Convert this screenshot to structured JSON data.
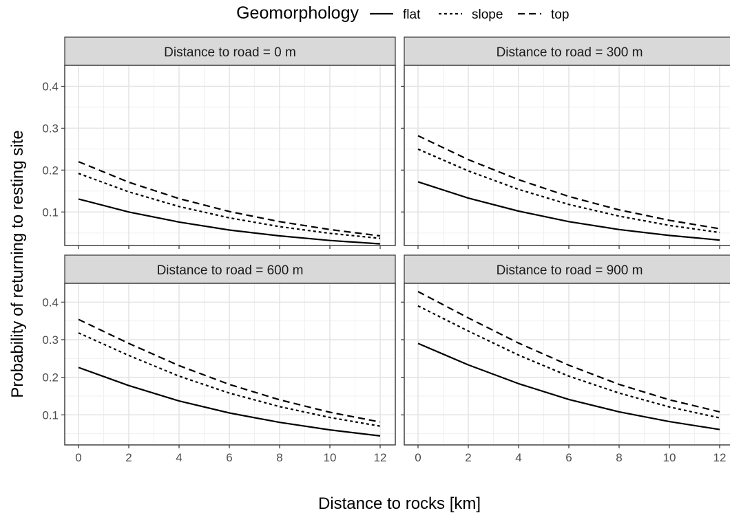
{
  "legend": {
    "title": "Geomorphology",
    "items": [
      {
        "label": "flat",
        "dash": "solid"
      },
      {
        "label": "slope",
        "dash": "dotted"
      },
      {
        "label": "top",
        "dash": "dashed"
      }
    ]
  },
  "axes": {
    "xlabel": "Distance to rocks [km]",
    "ylabel": "Probability of returning to resting site"
  },
  "chart_data": {
    "type": "line",
    "facet_by": "Distance to road",
    "xlim": [
      0,
      12
    ],
    "ylim": [
      0.02,
      0.45
    ],
    "x_ticks": [
      0,
      2,
      4,
      6,
      8,
      10,
      12
    ],
    "y_ticks": [
      0.1,
      0.2,
      0.3,
      0.4
    ],
    "grid": true,
    "legend_position": "top",
    "panels": [
      {
        "title": "Distance to road = 0 m",
        "x": [
          0,
          2,
          4,
          6,
          8,
          10,
          12
        ],
        "series": [
          {
            "name": "flat",
            "values": [
              0.131,
              0.1,
              0.076,
              0.057,
              0.043,
              0.032,
              0.024
            ]
          },
          {
            "name": "slope",
            "values": [
              0.192,
              0.148,
              0.113,
              0.086,
              0.065,
              0.049,
              0.037
            ]
          },
          {
            "name": "top",
            "values": [
              0.22,
              0.171,
              0.132,
              0.101,
              0.077,
              0.058,
              0.043
            ]
          }
        ]
      },
      {
        "title": "Distance to road = 300 m",
        "x": [
          0,
          2,
          4,
          6,
          8,
          10,
          12
        ],
        "series": [
          {
            "name": "flat",
            "values": [
              0.172,
              0.133,
              0.102,
              0.077,
              0.058,
              0.044,
              0.033
            ]
          },
          {
            "name": "slope",
            "values": [
              0.25,
              0.198,
              0.154,
              0.118,
              0.09,
              0.068,
              0.051
            ]
          },
          {
            "name": "top",
            "values": [
              0.282,
              0.225,
              0.177,
              0.137,
              0.105,
              0.08,
              0.06
            ]
          }
        ]
      },
      {
        "title": "Distance to road = 600 m",
        "x": [
          0,
          2,
          4,
          6,
          8,
          10,
          12
        ],
        "series": [
          {
            "name": "flat",
            "values": [
              0.226,
              0.178,
              0.137,
              0.105,
              0.08,
              0.06,
              0.044
            ]
          },
          {
            "name": "slope",
            "values": [
              0.318,
              0.258,
              0.203,
              0.158,
              0.122,
              0.093,
              0.07
            ]
          },
          {
            "name": "top",
            "values": [
              0.354,
              0.29,
              0.231,
              0.181,
              0.14,
              0.107,
              0.081
            ]
          }
        ]
      },
      {
        "title": "Distance to road = 900 m",
        "x": [
          0,
          2,
          4,
          6,
          8,
          10,
          12
        ],
        "series": [
          {
            "name": "flat",
            "values": [
              0.29,
              0.233,
              0.183,
              0.141,
              0.108,
              0.082,
              0.061
            ]
          },
          {
            "name": "slope",
            "values": [
              0.39,
              0.323,
              0.259,
              0.203,
              0.158,
              0.121,
              0.092
            ]
          },
          {
            "name": "top",
            "values": [
              0.428,
              0.358,
              0.291,
              0.232,
              0.181,
              0.14,
              0.108
            ]
          }
        ]
      }
    ]
  }
}
